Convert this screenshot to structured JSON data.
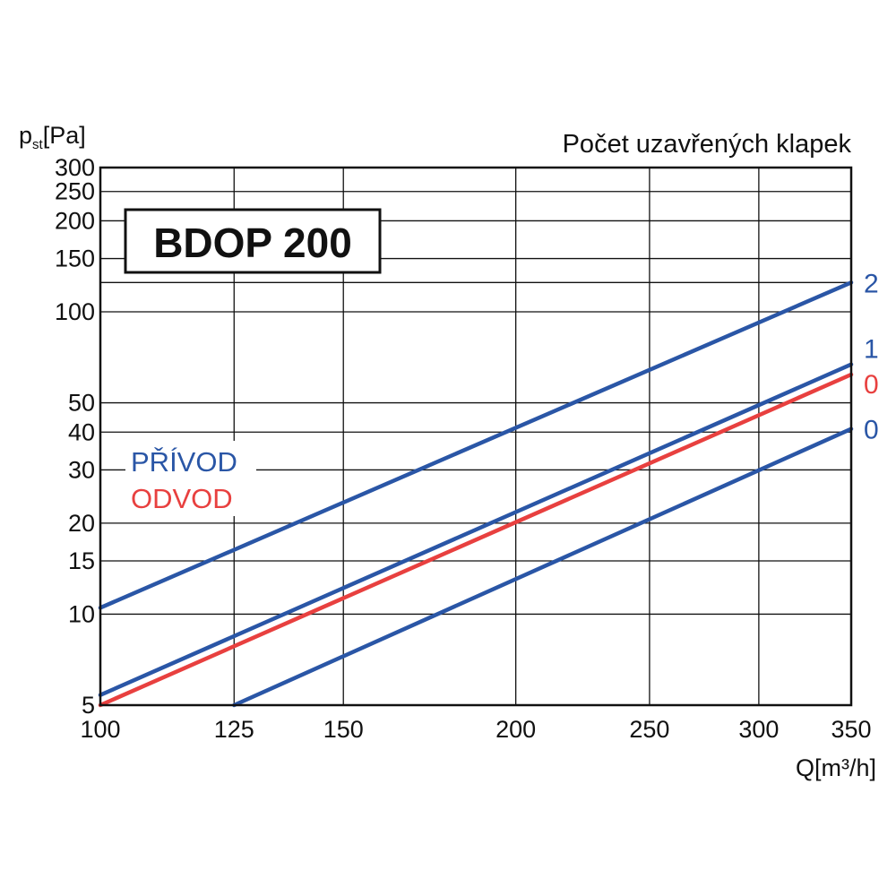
{
  "chart_data": {
    "type": "line",
    "title": "BDOP 200",
    "ylabel": "p",
    "ylabel_sub": "st",
    "ylabel_unit": "[Pa]",
    "xlabel": "Q",
    "xlabel_unit": "[m³/h]",
    "legend_title": "Počet uzavřených klapek",
    "x_scale": "log",
    "y_scale": "log",
    "xlim": [
      100,
      350
    ],
    "ylim": [
      5,
      300
    ],
    "x_ticks": [
      100,
      125,
      150,
      200,
      250,
      300,
      350
    ],
    "y_ticks": [
      5,
      10,
      15,
      20,
      30,
      40,
      50,
      100,
      150,
      200,
      250,
      300
    ],
    "y_gridlines": [
      5,
      10,
      15,
      20,
      30,
      40,
      50,
      100,
      125,
      150,
      200,
      250,
      300
    ],
    "grid": true,
    "key": [
      {
        "label": "PŘÍVOD",
        "color": "#2a56a6"
      },
      {
        "label": "ODVOD",
        "color": "#e8403f"
      }
    ],
    "series": [
      {
        "label": "2",
        "group": "PŘÍVOD",
        "color": "#2a56a6",
        "points": [
          [
            100,
            10.5
          ],
          [
            350,
            125
          ]
        ]
      },
      {
        "label": "1",
        "group": "PŘÍVOD",
        "color": "#2a56a6",
        "points": [
          [
            100,
            5.4
          ],
          [
            350,
            67
          ]
        ]
      },
      {
        "label": "0",
        "group": "ODVOD",
        "color": "#e8403f",
        "points": [
          [
            100,
            5.0
          ],
          [
            350,
            62
          ]
        ]
      },
      {
        "label": "0",
        "group": "PŘÍVOD",
        "color": "#2a56a6",
        "points": [
          [
            125,
            5.0
          ],
          [
            350,
            41
          ]
        ]
      }
    ]
  }
}
